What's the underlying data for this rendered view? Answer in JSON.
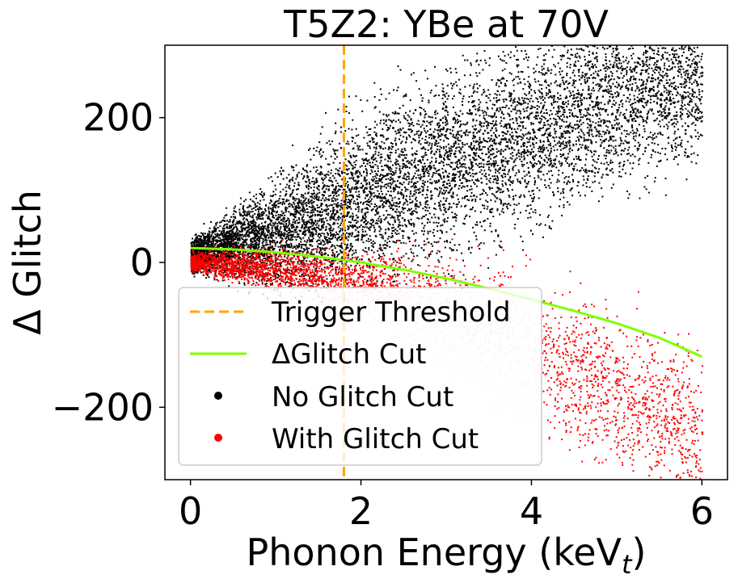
{
  "chart_data": {
    "type": "scatter",
    "title": "T5Z2: YBe at 70V",
    "xlabel": "Phonon Energy (keV",
    "xlabel_sub": "t",
    "xlabel_close": ")",
    "ylabel": "Δ Glitch",
    "xlim": [
      -0.3,
      6.3
    ],
    "ylim": [
      -300,
      300
    ],
    "x_ticks": [
      {
        "value": 0,
        "label": "0"
      },
      {
        "value": 2,
        "label": "2"
      },
      {
        "value": 4,
        "label": "4"
      },
      {
        "value": 6,
        "label": "6"
      }
    ],
    "y_ticks": [
      {
        "value": 200,
        "label": "200"
      },
      {
        "value": 0,
        "label": "0"
      },
      {
        "value": -200,
        "label": "−200"
      }
    ],
    "grid": false,
    "legend_position": "lower-left",
    "series": [
      {
        "name": "Trigger Threshold",
        "kind": "vline",
        "color": "#ffa500",
        "x": 1.8
      },
      {
        "name": "ΔGlitch Cut",
        "kind": "line",
        "color": "#7fff00",
        "x": [
          0,
          0.5,
          1,
          1.5,
          2,
          2.5,
          3,
          3.5,
          4,
          4.5,
          5,
          5.5,
          6
        ],
        "y": [
          20,
          18,
          14,
          8,
          0,
          -10,
          -22,
          -36,
          -51,
          -67,
          -84,
          -104,
          -130
        ]
      },
      {
        "name": "No Glitch Cut",
        "kind": "scatter",
        "color": "#000000",
        "description_band": {
          "x": [
            0,
            1,
            2,
            3,
            4,
            5,
            6
          ],
          "y_center": [
            10,
            40,
            90,
            140,
            180,
            230,
            260
          ],
          "y_spread": [
            10,
            35,
            55,
            60,
            60,
            60,
            60
          ]
        }
      },
      {
        "name": "With Glitch Cut",
        "kind": "scatter",
        "color": "#ff0000",
        "description_band": {
          "x": [
            0,
            1,
            2,
            3,
            4,
            5,
            6
          ],
          "y_center": [
            2,
            -10,
            -30,
            -60,
            -120,
            -180,
            -230
          ],
          "y_spread": [
            6,
            15,
            20,
            35,
            45,
            50,
            55
          ]
        }
      }
    ]
  }
}
